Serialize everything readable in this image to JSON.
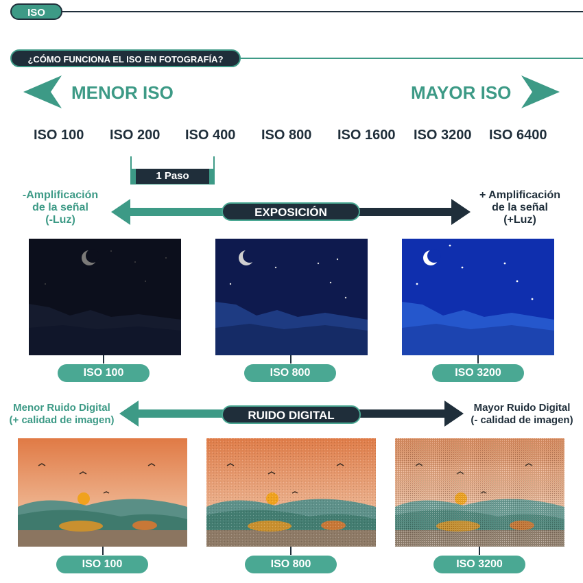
{
  "header": {
    "tag": "ISO",
    "question": "¿CÓMO FUNCIONA EL ISO EN FOTOGRAFÍA?"
  },
  "scale": {
    "left_label": "MENOR ISO",
    "right_label": "MAYOR ISO",
    "values": [
      "ISO 100",
      "ISO 200",
      "ISO 400",
      "ISO 800",
      "ISO 1600",
      "ISO 3200",
      "ISO 6400"
    ],
    "step_label": "1 Paso"
  },
  "exposure": {
    "title": "EXPOSICIÓN",
    "left": [
      "-Amplificación",
      "de la señal",
      "(-Luz)"
    ],
    "right": [
      "+ Amplificación",
      "de la señal",
      "(+Luz)"
    ],
    "labels": [
      "ISO 100",
      "ISO 800",
      "ISO 3200"
    ]
  },
  "noise": {
    "title": "RUIDO DIGITAL",
    "left": [
      "Menor Ruido Digital",
      "(+ calidad de imagen)"
    ],
    "right": [
      "Mayor Ruido Digital",
      "(- calidad de imagen)"
    ],
    "labels": [
      "ISO 100",
      "ISO 800",
      "ISO 3200"
    ]
  },
  "colors": {
    "teal": "#3d9a86",
    "dark": "#1f2e3a",
    "pill": "#4aa893"
  }
}
